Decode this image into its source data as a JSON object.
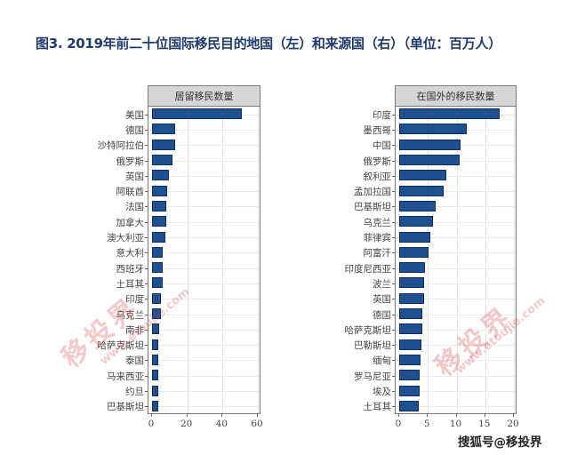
{
  "title": "图3. 2019年前二十位国际移民目的地国（左）和来源国（右）（单位：百万人）",
  "source_label": "搜狐号@移投界",
  "watermark": {
    "brand": "移投界",
    "url": "www.etoujie.com"
  },
  "colors": {
    "bar": "#1d4f91",
    "title": "#1f3a6e",
    "header_bg": "#d6d6d6",
    "watermark": "#d63c3c"
  },
  "chart_data": [
    {
      "type": "bar",
      "orientation": "horizontal",
      "title": "居留移民数量",
      "xlabel": "",
      "ylabel": "",
      "xlim": [
        0,
        60
      ],
      "xticks": [
        0,
        20,
        40,
        60
      ],
      "grid": true,
      "categories": [
        "美国",
        "德国",
        "沙特阿拉伯",
        "俄罗斯",
        "英国",
        "阿联酋",
        "法国",
        "加拿大",
        "澳大利亚",
        "意大利",
        "西班牙",
        "土耳其",
        "印度",
        "乌克兰",
        "南非",
        "哈萨克斯坦",
        "泰国",
        "马来西亚",
        "约旦",
        "巴基斯坦"
      ],
      "values": [
        50.7,
        13.1,
        13.1,
        11.6,
        9.6,
        8.6,
        8.3,
        8.0,
        7.5,
        6.3,
        6.1,
        6.0,
        5.2,
        5.0,
        4.2,
        3.7,
        3.6,
        3.4,
        3.3,
        3.3
      ]
    },
    {
      "type": "bar",
      "orientation": "horizontal",
      "title": "在国外的移民数量",
      "xlabel": "",
      "ylabel": "",
      "xlim": [
        0,
        20
      ],
      "xticks": [
        0,
        5,
        10,
        15,
        20
      ],
      "grid": true,
      "categories": [
        "印度",
        "墨西哥",
        "中国",
        "俄罗斯",
        "叙利亚",
        "孟加拉国",
        "巴基斯坦",
        "乌克兰",
        "菲律宾",
        "阿富汗",
        "印度尼西亚",
        "波兰",
        "英国",
        "德国",
        "哈萨克斯坦",
        "巴勒斯坦",
        "缅甸",
        "罗马尼亚",
        "埃及",
        "土耳其"
      ],
      "values": [
        17.5,
        11.8,
        10.7,
        10.5,
        8.2,
        7.8,
        6.3,
        5.9,
        5.4,
        5.1,
        4.5,
        4.4,
        4.4,
        4.0,
        4.0,
        3.9,
        3.7,
        3.6,
        3.5,
        3.4
      ]
    }
  ]
}
